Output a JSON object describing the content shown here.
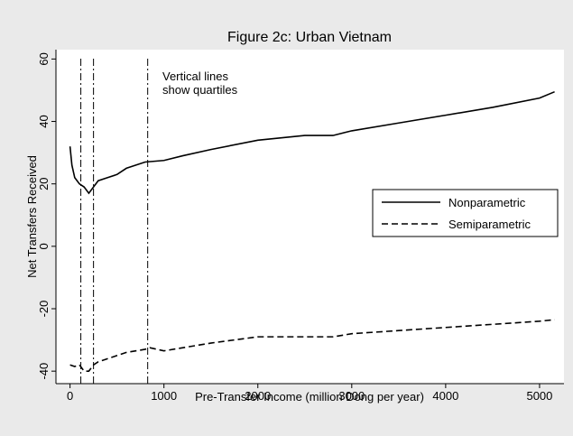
{
  "chart_data": {
    "type": "line",
    "title": "Figure 2c: Urban Vietnam",
    "xlabel": "Pre-Transfer Income (million Dong per year)",
    "ylabel": "Net Transfers Received",
    "annotation": [
      "Vertical lines",
      "show quartiles"
    ],
    "vlines": [
      115,
      250,
      827
    ],
    "xlim": [
      -150,
      5260
    ],
    "xticks": [
      0,
      1000,
      2000,
      3000,
      4000,
      5000
    ],
    "ylim": [
      -44,
      63
    ],
    "yticks": [
      -40,
      -20,
      0,
      20,
      40,
      60
    ],
    "legend": "right",
    "series": [
      {
        "name": "Nonparametric",
        "color": "#000000",
        "style": "solid",
        "x": [
          0,
          20,
          50,
          100,
          150,
          200,
          250,
          300,
          400,
          500,
          600,
          800,
          1000,
          1200,
          1500,
          2000,
          2500,
          2800,
          3000,
          3500,
          4000,
          4500,
          5000,
          5160
        ],
        "values": [
          32,
          26,
          22,
          20,
          19,
          17,
          19,
          21,
          22,
          23,
          25,
          27,
          27.5,
          29,
          31,
          34,
          35.5,
          35.5,
          37,
          39.5,
          42,
          44.5,
          47.5,
          49.5
        ]
      },
      {
        "name": "Semiparametric",
        "color": "#000000",
        "style": "dashed",
        "x": [
          0,
          50,
          100,
          150,
          200,
          250,
          300,
          400,
          600,
          800,
          850,
          1000,
          1500,
          2000,
          2500,
          2800,
          3000,
          3500,
          4000,
          4500,
          5000,
          5160
        ],
        "values": [
          -38,
          -38.5,
          -38,
          -40,
          -40,
          -38,
          -37,
          -36,
          -34,
          -33,
          -32.5,
          -33.5,
          -31,
          -29,
          -29,
          -29,
          -28,
          -27,
          -26,
          -25,
          -24,
          -23.5
        ]
      }
    ]
  }
}
